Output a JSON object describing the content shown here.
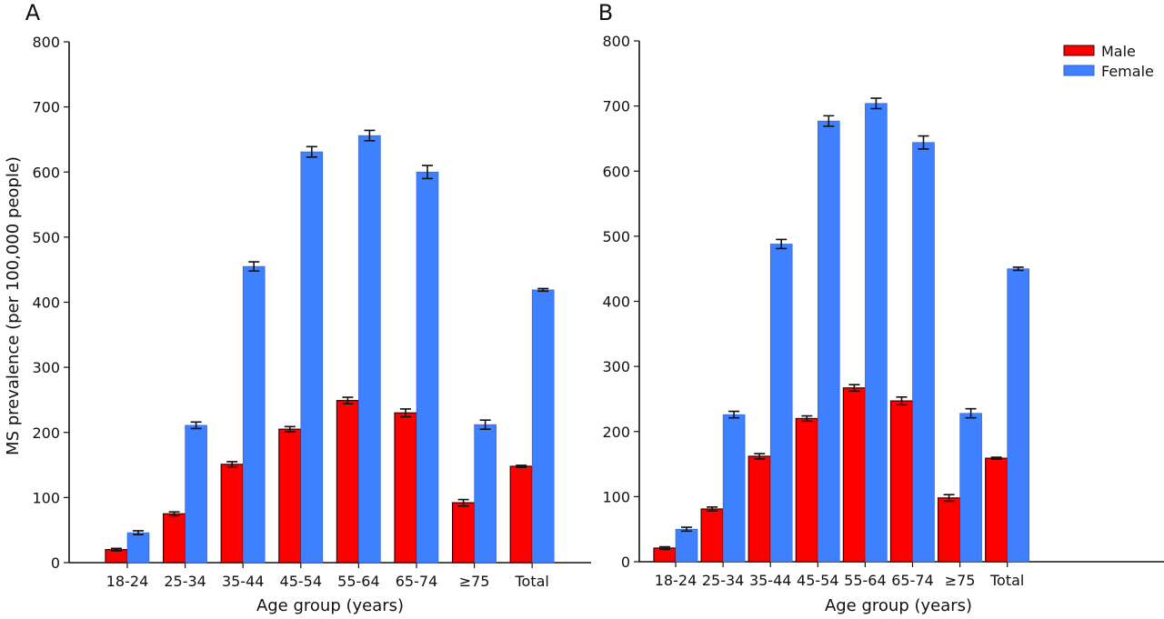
{
  "colors": {
    "male": "#FF0000",
    "male_outline": "#3a0000",
    "female": "#3F80FF",
    "female_outline": "#2e63c8"
  },
  "chart_data": [
    {
      "type": "bar",
      "panel": "A",
      "title": "",
      "xlabel": "Age group (years)",
      "ylabel": "MS prevalence (per 100,000 people)",
      "ylim": [
        0,
        800
      ],
      "yticks": [
        0,
        100,
        200,
        300,
        400,
        500,
        600,
        700,
        800
      ],
      "grid": false,
      "categories": [
        "18-24",
        "25-34",
        "35-44",
        "45-54",
        "55-64",
        "65-74",
        "≥75",
        "Total"
      ],
      "series": [
        {
          "name": "Male",
          "values": [
            20,
            75,
            151,
            205,
            249,
            230,
            92,
            148
          ],
          "error": [
            2,
            3,
            4,
            4,
            5,
            6,
            5,
            1.5
          ]
        },
        {
          "name": "Female",
          "values": [
            46,
            211,
            455,
            631,
            656,
            600,
            212,
            419
          ],
          "error": [
            3,
            5,
            7,
            8,
            8,
            10,
            7,
            2
          ]
        }
      ]
    },
    {
      "type": "bar",
      "panel": "B",
      "title": "",
      "xlabel": "Age group (years)",
      "ylabel": "",
      "ylim": [
        0,
        800
      ],
      "yticks": [
        0,
        100,
        200,
        300,
        400,
        500,
        600,
        700,
        800
      ],
      "grid": false,
      "legend": {
        "position": "top-right",
        "entries": [
          "Male",
          "Female"
        ]
      },
      "categories": [
        "18-24",
        "25-34",
        "35-44",
        "45-54",
        "55-64",
        "65-74",
        "≥75",
        "Total"
      ],
      "series": [
        {
          "name": "Male",
          "values": [
            21,
            81,
            162,
            220,
            267,
            247,
            98,
            159
          ],
          "error": [
            2,
            3,
            4,
            4,
            5,
            6,
            5,
            1.5
          ]
        },
        {
          "name": "Female",
          "values": [
            50,
            226,
            488,
            677,
            704,
            644,
            228,
            450
          ],
          "error": [
            3,
            5,
            7,
            8,
            8,
            10,
            7,
            2.5
          ]
        }
      ]
    }
  ]
}
